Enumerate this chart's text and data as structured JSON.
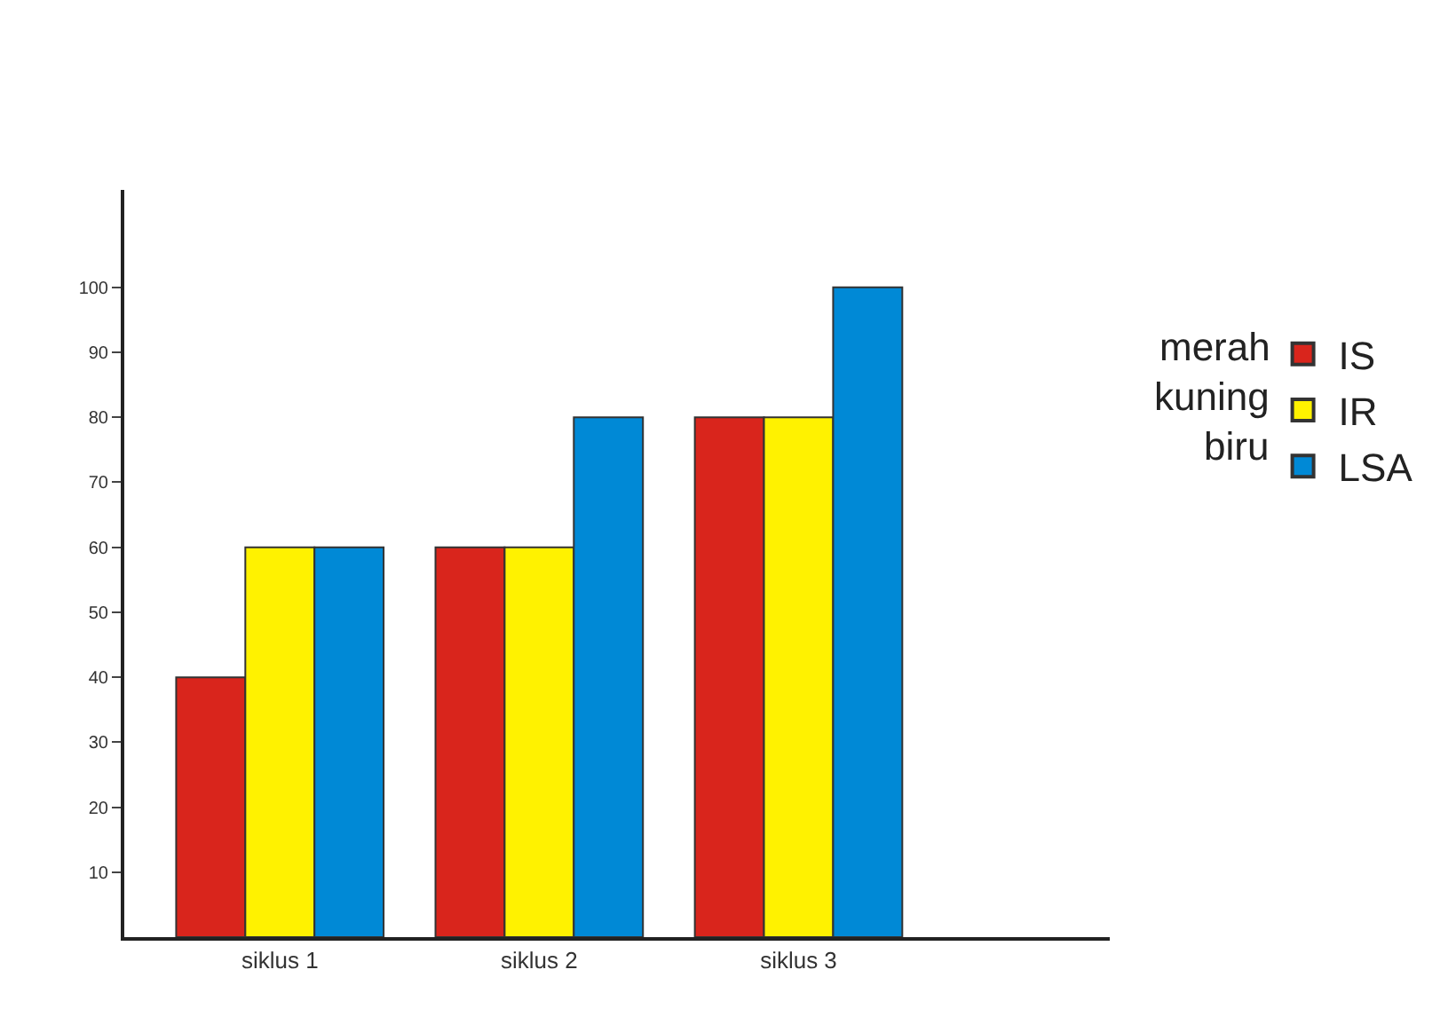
{
  "chart_data": {
    "type": "bar",
    "categories": [
      "siklus 1",
      "siklus 2",
      "siklus 3"
    ],
    "series": [
      {
        "name": "IS",
        "color": "#d9251c",
        "values": [
          40,
          60,
          80
        ]
      },
      {
        "name": "IR",
        "color": "#fff200",
        "values": [
          60,
          60,
          80
        ]
      },
      {
        "name": "LSA",
        "color": "#0089d6",
        "values": [
          60,
          80,
          100
        ]
      }
    ],
    "ylim": [
      0,
      115
    ],
    "yticks": [
      10,
      20,
      30,
      40,
      50,
      60,
      70,
      80,
      90,
      100
    ],
    "legend": "right",
    "annotations": [
      "merah",
      "kuning",
      "biru"
    ]
  }
}
